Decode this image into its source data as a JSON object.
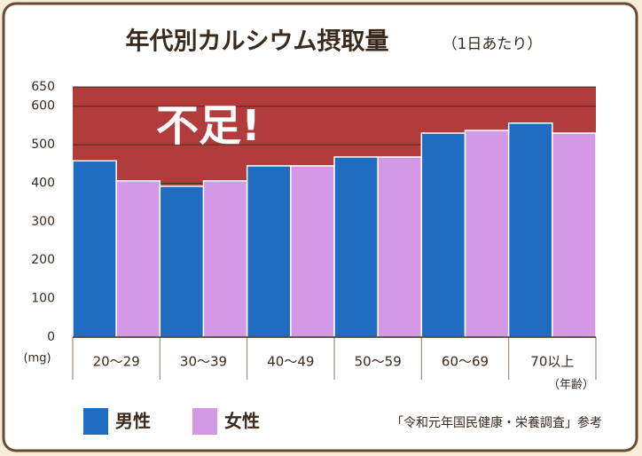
{
  "chart_data": {
    "type": "bar",
    "title": "年代別カルシウム摂取量",
    "subtitle": "（1日あたり）",
    "y_unit": "(mg)",
    "x_unit": "（年齢）",
    "annotation": "不足!",
    "source": "「令和元年国民健康・栄養調査」参考",
    "categories": [
      "20～29",
      "30～39",
      "40～49",
      "50～59",
      "60～69",
      "70以上"
    ],
    "series": [
      {
        "name": "男性",
        "color": "#1f6cc0",
        "values": [
          458,
          392,
          445,
          468,
          530,
          556
        ]
      },
      {
        "name": "女性",
        "color": "#d398e6",
        "values": [
          406,
          406,
          445,
          468,
          537,
          530
        ]
      }
    ],
    "ylim": [
      0,
      650
    ],
    "yticks": [
      0,
      100,
      200,
      300,
      400,
      500,
      600,
      650
    ],
    "grid": true,
    "plot_color": "#b23c3c"
  }
}
